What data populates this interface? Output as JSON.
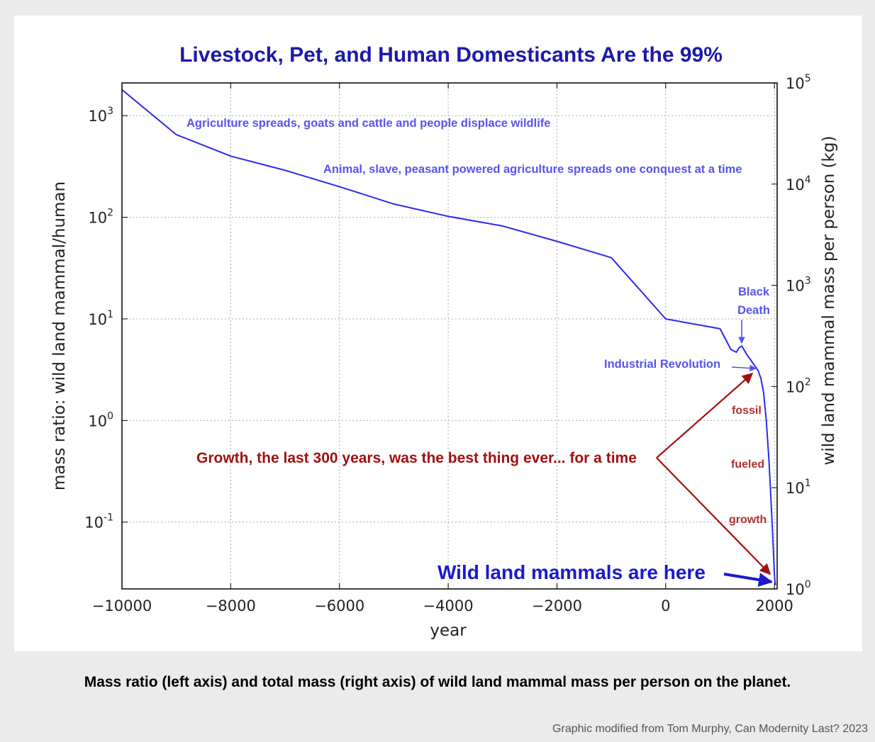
{
  "chart_data": {
    "type": "line",
    "title": "Livestock, Pet, and Human Domesticants Are the 99%",
    "xlabel": "year",
    "ylabel_left": "mass ratio: wild land mammal/human",
    "ylabel_right": "wild land mammal mass per person (kg)",
    "xlim": [
      -10000,
      2050
    ],
    "ylim_left": [
      0.022,
      2100
    ],
    "ylim_right": [
      1,
      100000
    ],
    "yscale": "log",
    "grid": true,
    "x_ticks": [
      {
        "value": -10000,
        "label": "−10000"
      },
      {
        "value": -8000,
        "label": "−8000"
      },
      {
        "value": -6000,
        "label": "−6000"
      },
      {
        "value": -4000,
        "label": "−4000"
      },
      {
        "value": -2000,
        "label": "−2000"
      },
      {
        "value": 0,
        "label": "0"
      },
      {
        "value": 2000,
        "label": "2000"
      }
    ],
    "y_ticks_left": [
      {
        "exp": -1,
        "base": "10",
        "sup": "-1"
      },
      {
        "exp": 0,
        "base": "10",
        "sup": "0"
      },
      {
        "exp": 1,
        "base": "10",
        "sup": "1"
      },
      {
        "exp": 2,
        "base": "10",
        "sup": "2"
      },
      {
        "exp": 3,
        "base": "10",
        "sup": "3"
      }
    ],
    "y_ticks_right": [
      {
        "exp": 0,
        "base": "10",
        "sup": "0"
      },
      {
        "exp": 1,
        "base": "10",
        "sup": "1"
      },
      {
        "exp": 2,
        "base": "10",
        "sup": "2"
      },
      {
        "exp": 3,
        "base": "10",
        "sup": "3"
      },
      {
        "exp": 4,
        "base": "10",
        "sup": "4"
      },
      {
        "exp": 5,
        "base": "10",
        "sup": "5"
      }
    ],
    "series": [
      {
        "color": "#2a2af0",
        "x": [
          -10000,
          -9000,
          -8000,
          -7000,
          -6000,
          -5000,
          -4000,
          -3000,
          -2000,
          -1000,
          0,
          1000,
          1200,
          1300,
          1350,
          1400,
          1500,
          1600,
          1700,
          1750,
          1800,
          1850,
          1900,
          1950,
          1970,
          1990,
          2000,
          2010,
          2020
        ],
        "y": [
          1800,
          650,
          400,
          290,
          200,
          135,
          102,
          82,
          58,
          40,
          10,
          8,
          5,
          4.7,
          5.2,
          5.4,
          4.4,
          3.7,
          3.1,
          2.6,
          1.9,
          1.0,
          0.4,
          0.12,
          0.07,
          0.04,
          0.03,
          0.026,
          0.024
        ]
      }
    ],
    "annotations": [
      {
        "text": "Agriculture spreads, goats and cattle and people displace wildlife",
        "color": "#5555ee"
      },
      {
        "text": "Animal, slave, peasant powered agriculture spreads one conquest at a time",
        "color": "#5555ee"
      },
      {
        "text": "Black",
        "color": "#5555ee"
      },
      {
        "text": "Death",
        "color": "#5555ee"
      },
      {
        "text": "Industrial Revolution",
        "color": "#5555ee"
      },
      {
        "text": "fossil",
        "color": "#b03030"
      },
      {
        "text": "fueled",
        "color": "#b03030"
      },
      {
        "text": "growth",
        "color": "#b03030"
      },
      {
        "text": "Growth, the last 300 years, was the best thing ever... for a time",
        "color": "#a01010"
      },
      {
        "text": "Wild land mammals are here",
        "color": "#1a1acc"
      }
    ]
  },
  "caption": "Mass ratio (left axis) and total mass (right axis) of wild land mammal mass per person on the planet.",
  "credit": "Graphic modified from Tom Murphy, Can Modernity Last?   2023",
  "colors": {
    "title": "#1a1aaa",
    "line": "#2a2af0",
    "annotation_blue": "#5555ee",
    "annotation_red": "#a01010",
    "arrow_red": "#a01010",
    "arrow_blue": "#1a1acc"
  }
}
